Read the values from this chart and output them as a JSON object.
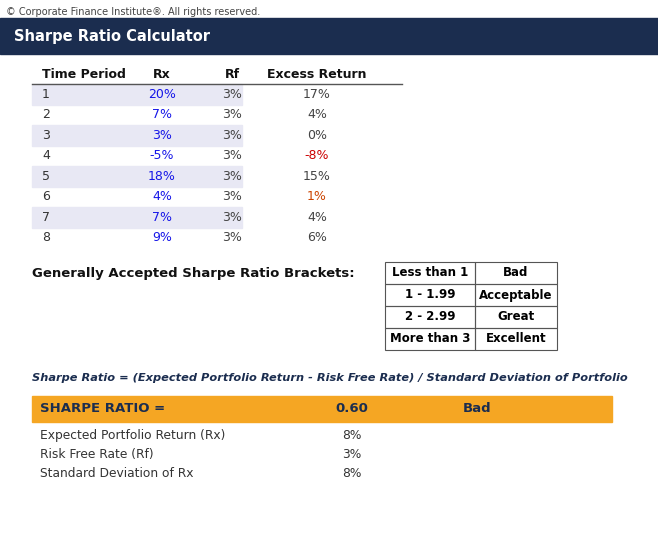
{
  "copyright": "© Corporate Finance Institute®. All rights reserved.",
  "header_bg": "#1b2d4f",
  "header_title": "Sharpe Ratio Calculator",
  "header_title_color": "#ffffff",
  "copyright_color": "#444444",
  "table_headers": [
    "Time Period",
    "Rx",
    "Rf",
    "Excess Return"
  ],
  "time_periods": [
    1,
    2,
    3,
    4,
    5,
    6,
    7,
    8
  ],
  "rx_values": [
    "20%",
    "7%",
    "3%",
    "-5%",
    "18%",
    "4%",
    "7%",
    "9%"
  ],
  "rf_values": [
    "3%",
    "3%",
    "3%",
    "3%",
    "3%",
    "3%",
    "3%",
    "3%"
  ],
  "excess_values": [
    "17%",
    "4%",
    "0%",
    "-8%",
    "15%",
    "1%",
    "4%",
    "6%"
  ],
  "rx_colors": [
    "#1616e8",
    "#1616e8",
    "#1616e8",
    "#1616e8",
    "#1616e8",
    "#1616e8",
    "#1616e8",
    "#1616e8"
  ],
  "rf_colors": [
    "#444444",
    "#444444",
    "#444444",
    "#444444",
    "#444444",
    "#444444",
    "#444444",
    "#444444"
  ],
  "excess_colors": [
    "#444444",
    "#444444",
    "#444444",
    "#cc0000",
    "#444444",
    "#cc4400",
    "#444444",
    "#444444"
  ],
  "shaded_rows": [
    0,
    2,
    4,
    6
  ],
  "shaded_color": "#e8e8f4",
  "brackets_title": "Generally Accepted Sharpe Ratio Brackets:",
  "brackets": [
    [
      "Less than 1",
      "Bad"
    ],
    [
      "1 - 1.99",
      "Acceptable"
    ],
    [
      "2 - 2.99",
      "Great"
    ],
    [
      "More than 3",
      "Excellent"
    ]
  ],
  "formula_text": "Sharpe Ratio = (Expected Portfolio Return - Risk Free Rate) / Standard Deviation of Portfolio",
  "sharpe_bg": "#f5a623",
  "sharpe_label": "SHARPE RATIO =",
  "sharpe_value": "0.60",
  "sharpe_rating": "Bad",
  "sharpe_text_color": "#1b2d4f",
  "summary_rows": [
    [
      "Expected Portfolio Return (Rx)",
      "8%"
    ],
    [
      "Risk Free Rate (Rf)",
      "3%"
    ],
    [
      "Standard Deviation of Rx",
      "8%"
    ]
  ],
  "fig_width": 6.58,
  "fig_height": 5.5,
  "dpi": 100
}
